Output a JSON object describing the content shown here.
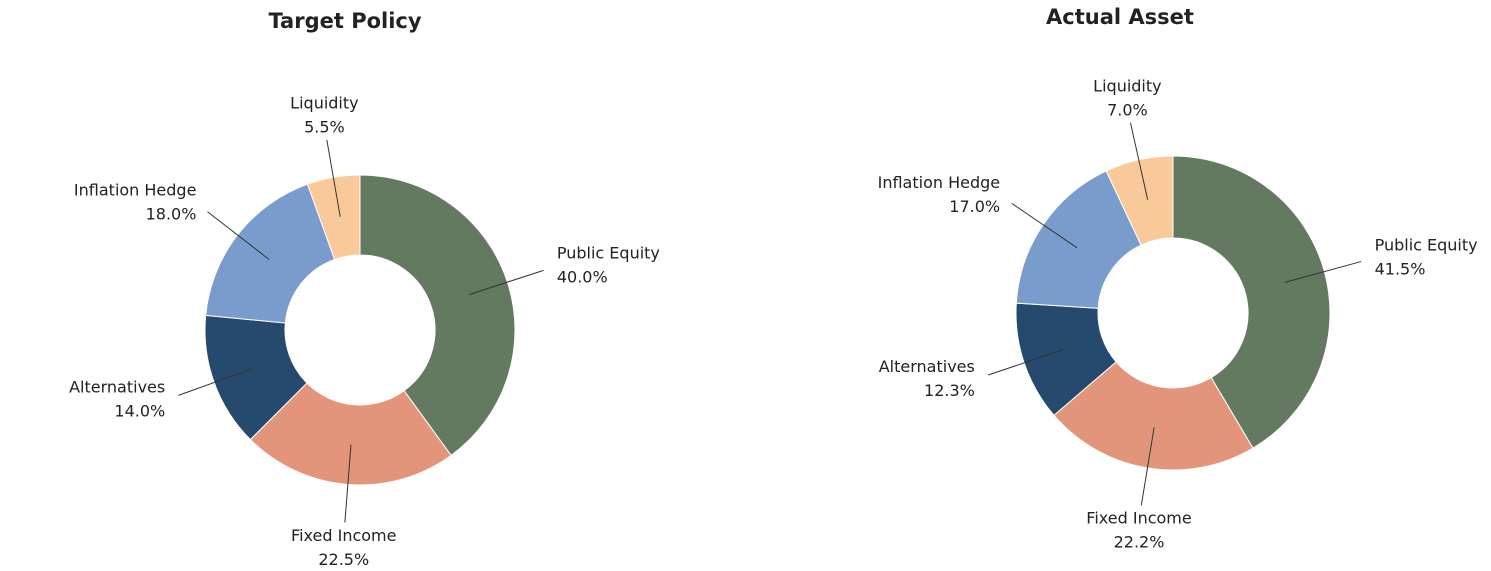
{
  "chart_data": [
    {
      "type": "pie",
      "title": "Target Policy",
      "categories": [
        "Public Equity",
        "Fixed Income",
        "Alternatives",
        "Inflation Hedge",
        "Liquidity"
      ],
      "values": [
        40.0,
        22.5,
        14.0,
        18.0,
        5.5
      ],
      "value_labels": [
        "40.0%",
        "22.5%",
        "14.0%",
        "18.0%",
        "5.5%"
      ],
      "colors": [
        "#637a60",
        "#e2957a",
        "#264a6e",
        "#7a9ccc",
        "#f9c99a"
      ]
    },
    {
      "type": "pie",
      "title": "Actual Asset",
      "categories": [
        "Public Equity",
        "Fixed Income",
        "Alternatives",
        "Inflation Hedge",
        "Liquidity"
      ],
      "values": [
        41.5,
        22.2,
        12.3,
        17.0,
        7.0
      ],
      "value_labels": [
        "41.5%",
        "22.2%",
        "12.3%",
        "17.0%",
        "7.0%"
      ],
      "colors": [
        "#637a60",
        "#e2957a",
        "#264a6e",
        "#7a9ccc",
        "#f9c99a"
      ]
    }
  ]
}
